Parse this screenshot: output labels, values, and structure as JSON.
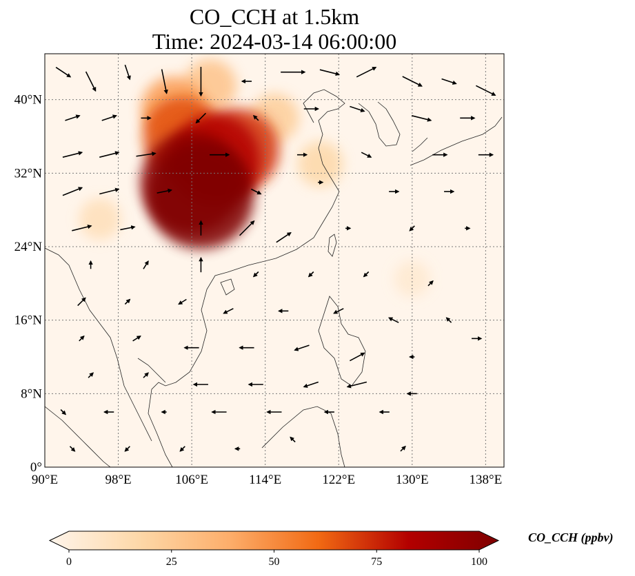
{
  "title": {
    "line1": "CO_CCH at 1.5km",
    "line2": "Time: 2024-03-14 06:00:00"
  },
  "map": {
    "extent": {
      "lon": [
        90,
        140
      ],
      "lat": [
        0,
        45
      ]
    },
    "lon_ticks": [
      {
        "value": 90,
        "label": "90°E"
      },
      {
        "value": 98,
        "label": "98°E"
      },
      {
        "value": 106,
        "label": "106°E"
      },
      {
        "value": 114,
        "label": "114°E"
      },
      {
        "value": 122,
        "label": "122°E"
      },
      {
        "value": 130,
        "label": "130°E"
      },
      {
        "value": 138,
        "label": "138°E"
      }
    ],
    "lat_ticks": [
      {
        "value": 0,
        "label": "0°"
      },
      {
        "value": 8,
        "label": "8°N"
      },
      {
        "value": 16,
        "label": "16°N"
      },
      {
        "value": 24,
        "label": "24°N"
      },
      {
        "value": 32,
        "label": "32°N"
      },
      {
        "value": 40,
        "label": "40°N"
      }
    ],
    "gridlines": true,
    "plumes": [
      {
        "lon": 107,
        "lat": 29.5,
        "value": 100
      },
      {
        "lon": 106,
        "lat": 31,
        "value": 95
      },
      {
        "lon": 108.5,
        "lat": 33.5,
        "value": 80
      },
      {
        "lon": 111,
        "lat": 34.5,
        "value": 70
      },
      {
        "lon": 105,
        "lat": 36,
        "value": 65
      },
      {
        "lon": 104,
        "lat": 39,
        "value": 45
      },
      {
        "lon": 108,
        "lat": 41.5,
        "value": 30
      },
      {
        "lon": 115,
        "lat": 38,
        "value": 25
      },
      {
        "lon": 120,
        "lat": 33,
        "value": 20
      },
      {
        "lon": 96,
        "lat": 27,
        "value": 15
      },
      {
        "lon": 130,
        "lat": 20.5,
        "value": 8
      }
    ],
    "wind_vectors": [
      {
        "lon": 92,
        "lat": 43,
        "u": 1.5,
        "v": -1
      },
      {
        "lon": 95,
        "lat": 42,
        "u": 1,
        "v": -2
      },
      {
        "lon": 99,
        "lat": 43,
        "u": 0.5,
        "v": -1.5
      },
      {
        "lon": 103,
        "lat": 42,
        "u": 0.5,
        "v": -2.5
      },
      {
        "lon": 107,
        "lat": 42,
        "u": 0,
        "v": -3
      },
      {
        "lon": 112,
        "lat": 42,
        "u": -1,
        "v": 0
      },
      {
        "lon": 117,
        "lat": 43,
        "u": 2.5,
        "v": 0
      },
      {
        "lon": 121,
        "lat": 43,
        "u": 2,
        "v": -0.5
      },
      {
        "lon": 125,
        "lat": 43,
        "u": 2,
        "v": 1
      },
      {
        "lon": 130,
        "lat": 42,
        "u": 2,
        "v": -1
      },
      {
        "lon": 134,
        "lat": 42,
        "u": 1.5,
        "v": -0.5
      },
      {
        "lon": 138,
        "lat": 41,
        "u": 2,
        "v": -1
      },
      {
        "lon": 93,
        "lat": 38,
        "u": 1.5,
        "v": 0.5
      },
      {
        "lon": 97,
        "lat": 38,
        "u": 1.5,
        "v": 0.5
      },
      {
        "lon": 101,
        "lat": 38,
        "u": 1,
        "v": 0
      },
      {
        "lon": 107,
        "lat": 38,
        "u": -1,
        "v": -1
      },
      {
        "lon": 113,
        "lat": 38,
        "u": -0.5,
        "v": 0.5
      },
      {
        "lon": 119,
        "lat": 39,
        "u": 1.5,
        "v": 0
      },
      {
        "lon": 124,
        "lat": 39,
        "u": 1.5,
        "v": -0.5
      },
      {
        "lon": 131,
        "lat": 38,
        "u": 2,
        "v": -0.5
      },
      {
        "lon": 136,
        "lat": 38,
        "u": 1.5,
        "v": 0
      },
      {
        "lon": 93,
        "lat": 34,
        "u": 2,
        "v": 0.5
      },
      {
        "lon": 97,
        "lat": 34,
        "u": 2,
        "v": 0.5
      },
      {
        "lon": 101,
        "lat": 34,
        "u": 2,
        "v": 0.3
      },
      {
        "lon": 109,
        "lat": 34,
        "u": 2,
        "v": 0
      },
      {
        "lon": 118,
        "lat": 34,
        "u": 1,
        "v": 0
      },
      {
        "lon": 125,
        "lat": 34,
        "u": 1,
        "v": -0.5
      },
      {
        "lon": 133,
        "lat": 34,
        "u": 1.5,
        "v": 0
      },
      {
        "lon": 138,
        "lat": 34,
        "u": 1.5,
        "v": 0
      },
      {
        "lon": 93,
        "lat": 30,
        "u": 2,
        "v": 0.8
      },
      {
        "lon": 97,
        "lat": 30,
        "u": 2,
        "v": 0.5
      },
      {
        "lon": 103,
        "lat": 30,
        "u": 1.5,
        "v": 0.3
      },
      {
        "lon": 113,
        "lat": 30,
        "u": 1,
        "v": -0.5
      },
      {
        "lon": 120,
        "lat": 31,
        "u": 0.5,
        "v": 0
      },
      {
        "lon": 128,
        "lat": 30,
        "u": 1,
        "v": 0
      },
      {
        "lon": 134,
        "lat": 30,
        "u": 1,
        "v": 0
      },
      {
        "lon": 94,
        "lat": 26,
        "u": 2,
        "v": 0.5
      },
      {
        "lon": 99,
        "lat": 26,
        "u": 1.5,
        "v": 0.3
      },
      {
        "lon": 107,
        "lat": 26,
        "u": 0,
        "v": 1.5
      },
      {
        "lon": 112,
        "lat": 26,
        "u": 1.5,
        "v": 1.5
      },
      {
        "lon": 116,
        "lat": 25,
        "u": 1.5,
        "v": 1
      },
      {
        "lon": 123,
        "lat": 26,
        "u": 0.5,
        "v": 0
      },
      {
        "lon": 130,
        "lat": 26,
        "u": -0.5,
        "v": -0.5
      },
      {
        "lon": 136,
        "lat": 26,
        "u": 0.5,
        "v": 0
      },
      {
        "lon": 95,
        "lat": 22,
        "u": 0,
        "v": 0.8
      },
      {
        "lon": 101,
        "lat": 22,
        "u": 0.5,
        "v": 0.8
      },
      {
        "lon": 107,
        "lat": 22,
        "u": 0,
        "v": 1.5
      },
      {
        "lon": 113,
        "lat": 21,
        "u": -0.5,
        "v": -0.5
      },
      {
        "lon": 119,
        "lat": 21,
        "u": -0.5,
        "v": -0.5
      },
      {
        "lon": 125,
        "lat": 21,
        "u": -0.5,
        "v": -0.5
      },
      {
        "lon": 132,
        "lat": 20,
        "u": 0.5,
        "v": 0.5
      },
      {
        "lon": 94,
        "lat": 18,
        "u": 0.8,
        "v": 0.8
      },
      {
        "lon": 99,
        "lat": 18,
        "u": 0.5,
        "v": 0.5
      },
      {
        "lon": 105,
        "lat": 18,
        "u": -0.8,
        "v": -0.5
      },
      {
        "lon": 110,
        "lat": 17,
        "u": -1,
        "v": -0.5
      },
      {
        "lon": 116,
        "lat": 17,
        "u": -1,
        "v": 0
      },
      {
        "lon": 122,
        "lat": 17,
        "u": -1,
        "v": -0.5
      },
      {
        "lon": 128,
        "lat": 16,
        "u": -1,
        "v": 0.5
      },
      {
        "lon": 134,
        "lat": 16,
        "u": -0.5,
        "v": 0.5
      },
      {
        "lon": 94,
        "lat": 14,
        "u": 0.5,
        "v": 0.5
      },
      {
        "lon": 100,
        "lat": 14,
        "u": 0.8,
        "v": 0.5
      },
      {
        "lon": 106,
        "lat": 13,
        "u": -1.5,
        "v": 0
      },
      {
        "lon": 112,
        "lat": 13,
        "u": -1.5,
        "v": 0
      },
      {
        "lon": 118,
        "lat": 13,
        "u": -1.5,
        "v": -0.5
      },
      {
        "lon": 124,
        "lat": 12,
        "u": 1.5,
        "v": 0.8
      },
      {
        "lon": 130,
        "lat": 12,
        "u": -0.5,
        "v": 0
      },
      {
        "lon": 137,
        "lat": 14,
        "u": 1,
        "v": 0
      },
      {
        "lon": 95,
        "lat": 10,
        "u": 0.5,
        "v": 0.5
      },
      {
        "lon": 101,
        "lat": 10,
        "u": 0.5,
        "v": 0.5
      },
      {
        "lon": 107,
        "lat": 9,
        "u": -1.5,
        "v": 0
      },
      {
        "lon": 113,
        "lat": 9,
        "u": -1.5,
        "v": 0
      },
      {
        "lon": 119,
        "lat": 9,
        "u": -1.5,
        "v": -0.5
      },
      {
        "lon": 124,
        "lat": 9,
        "u": -2,
        "v": -0.5
      },
      {
        "lon": 130,
        "lat": 8,
        "u": -1,
        "v": 0
      },
      {
        "lon": 92,
        "lat": 6,
        "u": 0.5,
        "v": -0.5
      },
      {
        "lon": 97,
        "lat": 6,
        "u": -1,
        "v": 0
      },
      {
        "lon": 103,
        "lat": 6,
        "u": -0.5,
        "v": 0
      },
      {
        "lon": 109,
        "lat": 6,
        "u": -1.5,
        "v": 0
      },
      {
        "lon": 115,
        "lat": 6,
        "u": -1.5,
        "v": 0
      },
      {
        "lon": 121,
        "lat": 6,
        "u": -1,
        "v": 0
      },
      {
        "lon": 127,
        "lat": 6,
        "u": -1,
        "v": 0
      },
      {
        "lon": 93,
        "lat": 2,
        "u": 0.5,
        "v": -0.5
      },
      {
        "lon": 99,
        "lat": 2,
        "u": -0.5,
        "v": -0.5
      },
      {
        "lon": 105,
        "lat": 2,
        "u": -0.5,
        "v": -0.5
      },
      {
        "lon": 111,
        "lat": 2,
        "u": -0.5,
        "v": 0
      },
      {
        "lon": 117,
        "lat": 3,
        "u": -0.5,
        "v": 0.5
      },
      {
        "lon": 129,
        "lat": 2,
        "u": 0.5,
        "v": 0.5
      }
    ]
  },
  "colorbar": {
    "min": 0,
    "max": 100,
    "extend": "both",
    "ticks": [
      {
        "value": 0,
        "label": "0"
      },
      {
        "value": 25,
        "label": "25"
      },
      {
        "value": 50,
        "label": "50"
      },
      {
        "value": 75,
        "label": "75"
      },
      {
        "value": 100,
        "label": "100"
      }
    ],
    "label": "CO_CCH (ppbv)",
    "colors": [
      "#fff5eb",
      "#fdd8a8",
      "#fdae6b",
      "#f16913",
      "#b30000",
      "#7f0000"
    ]
  }
}
